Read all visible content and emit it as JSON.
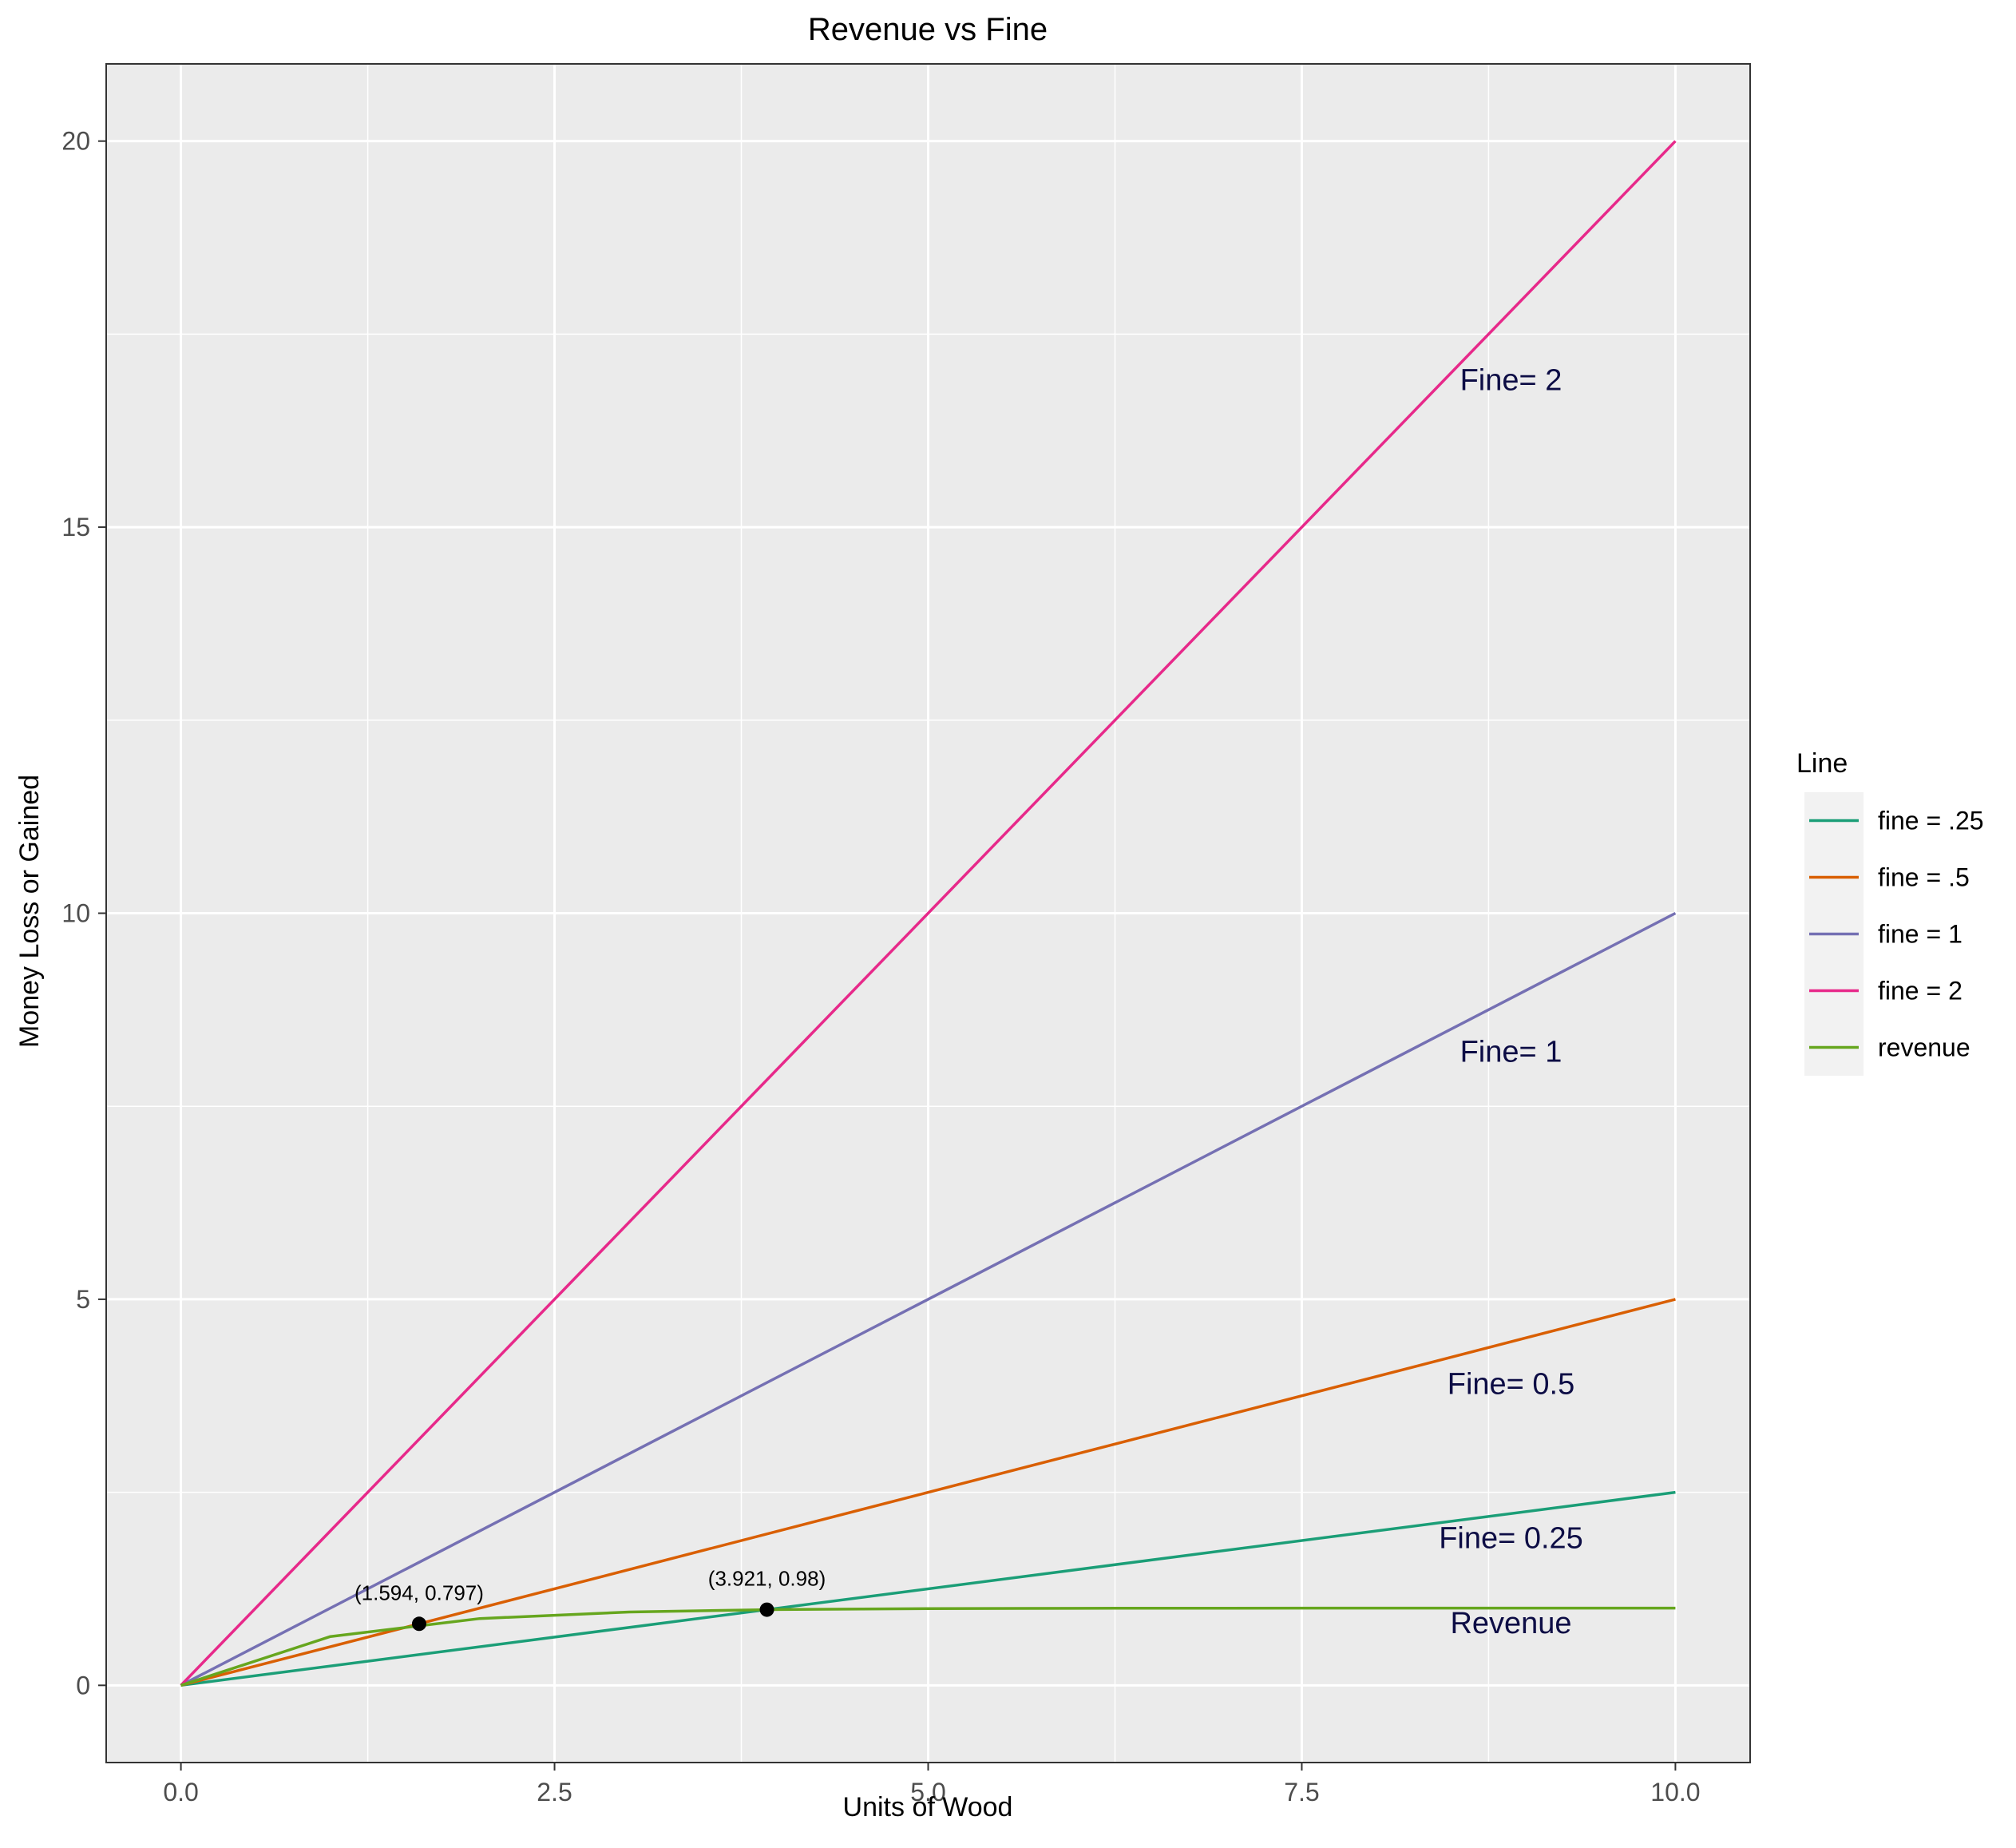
{
  "chart_data": {
    "type": "line",
    "title": "Revenue vs Fine",
    "xlabel": "Units of Wood",
    "ylabel": "Money Loss or Gained",
    "xlim": [
      -0.5,
      10.5
    ],
    "ylim": [
      -1,
      21
    ],
    "x_ticks": [
      0,
      2.5,
      5,
      7.5,
      10
    ],
    "x_tick_labels": [
      "0.0",
      "2.5",
      "5.0",
      "7.5",
      "10.0"
    ],
    "y_ticks": [
      0,
      5,
      10,
      15,
      20
    ],
    "y_tick_labels": [
      "0",
      "5",
      "10",
      "15",
      "20"
    ],
    "grid": true,
    "legend": {
      "title": "Line",
      "position": "right"
    },
    "series": [
      {
        "name": "fine = .25",
        "color": "#1B9E77",
        "x": [
          0,
          10
        ],
        "y": [
          0,
          2.5
        ]
      },
      {
        "name": "fine = .5",
        "color": "#D95F02",
        "x": [
          0,
          10
        ],
        "y": [
          0,
          5
        ]
      },
      {
        "name": "fine = 1",
        "color": "#7570B3",
        "x": [
          0,
          10
        ],
        "y": [
          0,
          10
        ]
      },
      {
        "name": "fine = 2",
        "color": "#E7298A",
        "x": [
          0,
          10
        ],
        "y": [
          0,
          20
        ]
      },
      {
        "name": "revenue",
        "color": "#66A61E",
        "x": [
          0,
          1,
          2,
          3,
          4,
          5,
          6,
          7,
          8,
          9,
          10
        ],
        "y": [
          0,
          0.632,
          0.865,
          0.95,
          0.982,
          0.993,
          0.998,
          0.999,
          1.0,
          1.0,
          1.0
        ]
      }
    ],
    "points": [
      {
        "x": 1.594,
        "y": 0.797,
        "label": "(1.594, 0.797)"
      },
      {
        "x": 3.921,
        "y": 0.98,
        "label": "(3.921, 0.98)"
      }
    ],
    "annotations": [
      {
        "text": "Fine= 2",
        "x": 8.9,
        "y": 16.9
      },
      {
        "text": "Fine= 1",
        "x": 8.9,
        "y": 8.2
      },
      {
        "text": "Fine= 0.5",
        "x": 8.9,
        "y": 3.9
      },
      {
        "text": "Fine= 0.25",
        "x": 8.9,
        "y": 1.9
      },
      {
        "text": "Revenue",
        "x": 8.9,
        "y": 0.8
      }
    ]
  }
}
